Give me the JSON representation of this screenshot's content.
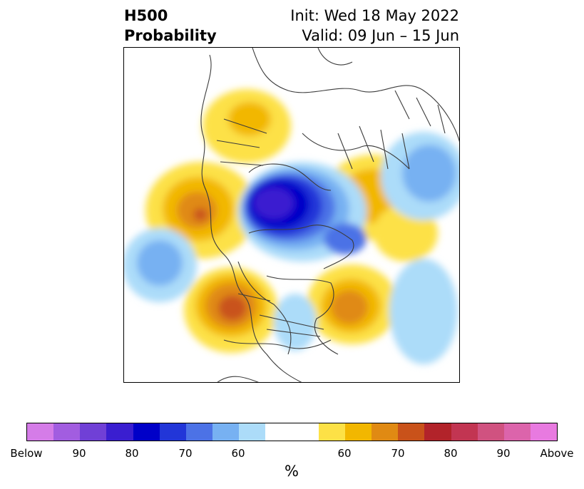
{
  "title": {
    "left_line1": "H500",
    "left_line2": "Probability",
    "right_line1": "Init: Wed 18 May 2022",
    "right_line2": "Valid: 09 Jun – 15 Jun"
  },
  "colorbar": {
    "colors": [
      "#d57ce8",
      "#a25de0",
      "#7040d6",
      "#3a1ed0",
      "#0000c8",
      "#2236d8",
      "#4c72e6",
      "#77b1f2",
      "#acdcf9",
      "#ffffff",
      "#ffffff",
      "#fde146",
      "#f2b700",
      "#e08a13",
      "#c9521a",
      "#b2232a",
      "#c23552",
      "#d05280",
      "#dc64ab",
      "#e87ae0"
    ],
    "tick_labels": [
      "Below",
      "90",
      "80",
      "70",
      "60",
      "60",
      "70",
      "80",
      "90",
      "Above"
    ],
    "units": "%"
  },
  "map": {
    "projection": "north-polar-stereographic",
    "anomalies": [
      {
        "name": "alaska-high",
        "kind": "above",
        "peak": 80
      },
      {
        "name": "arctic-low",
        "kind": "below",
        "peak": 80
      },
      {
        "name": "western-us-high",
        "kind": "above",
        "peak": 80
      },
      {
        "name": "east-canada-high",
        "kind": "above",
        "peak": 75
      },
      {
        "name": "scandinavia-high",
        "kind": "above",
        "peak": 65
      },
      {
        "name": "siberia-high",
        "kind": "above",
        "peak": 65
      },
      {
        "name": "north-pacific-low",
        "kind": "below",
        "peak": 65
      },
      {
        "name": "east-asia-low",
        "kind": "below",
        "peak": 65
      },
      {
        "name": "atlantic-low",
        "kind": "below",
        "peak": 60
      },
      {
        "name": "great-lakes-low",
        "kind": "below",
        "peak": 60
      }
    ]
  }
}
